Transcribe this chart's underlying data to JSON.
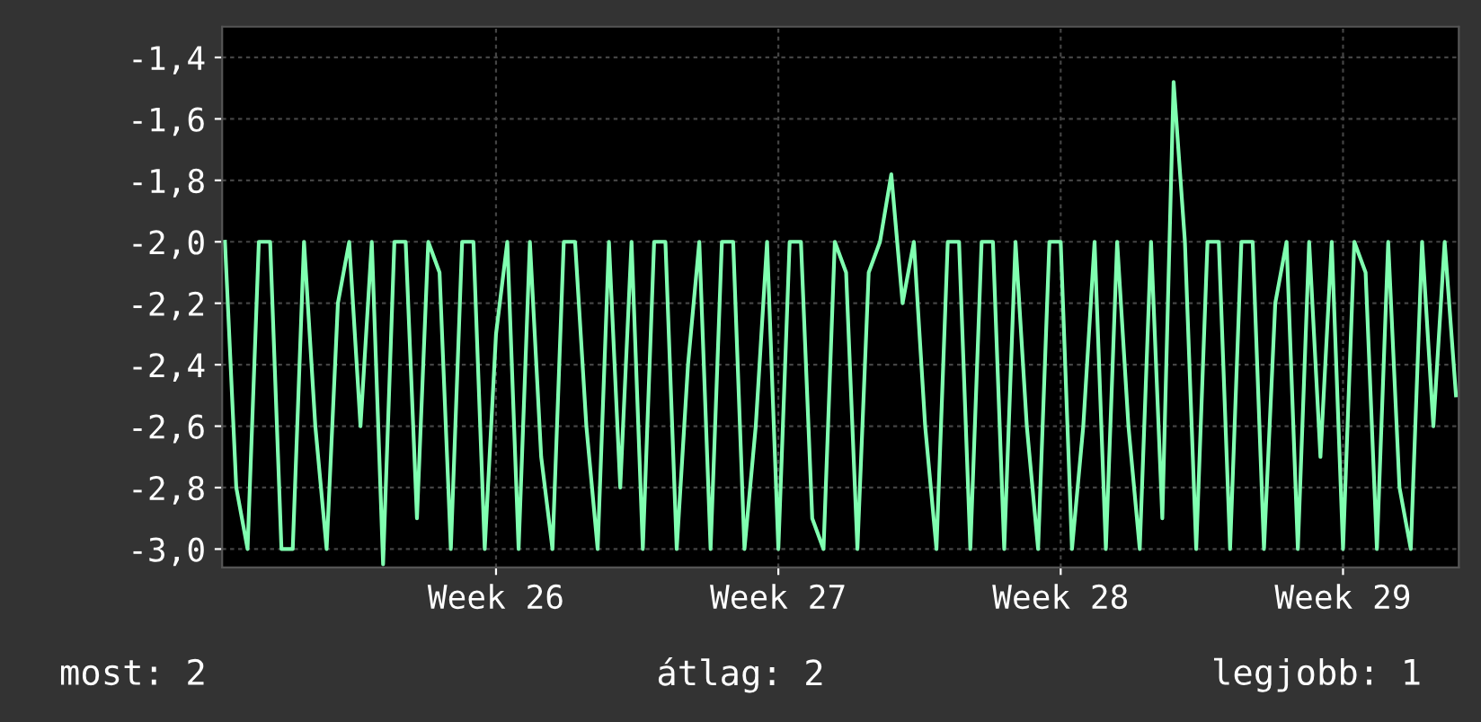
{
  "chart_data": {
    "type": "line",
    "color": "#80ffb0",
    "categories": [
      null,
      null,
      null,
      null,
      null,
      null,
      null,
      null,
      null,
      null,
      null,
      null,
      null,
      null,
      null,
      null,
      null,
      null,
      null,
      null,
      null,
      null,
      null,
      null,
      "Week 26",
      null,
      null,
      null,
      null,
      null,
      null,
      null,
      null,
      null,
      null,
      null,
      null,
      null,
      null,
      null,
      null,
      null,
      null,
      null,
      null,
      null,
      null,
      null,
      null,
      "Week 27",
      null,
      null,
      null,
      null,
      null,
      null,
      null,
      null,
      null,
      null,
      null,
      null,
      null,
      null,
      null,
      null,
      null,
      null,
      null,
      null,
      null,
      null,
      null,
      null,
      "Week 28",
      null,
      null,
      null,
      null,
      null,
      null,
      null,
      null,
      null,
      null,
      null,
      null,
      null,
      null,
      null,
      null,
      null,
      null,
      null,
      null,
      null,
      null,
      null,
      null,
      "Week 29",
      null,
      null,
      null,
      null,
      null,
      null,
      null,
      null,
      null,
      null
    ],
    "values": [
      -2.0,
      -2.8,
      -3.0,
      -2.0,
      -2.0,
      -3.0,
      -3.0,
      -2.0,
      -2.6,
      -3.0,
      -2.2,
      -2.0,
      -2.6,
      -2.0,
      -3.05,
      -2.0,
      -2.0,
      -2.9,
      -2.0,
      -2.1,
      -3.0,
      -2.0,
      -2.0,
      -3.0,
      -2.3,
      -2.0,
      -3.0,
      -2.0,
      -2.7,
      -3.0,
      -2.0,
      -2.0,
      -2.6,
      -3.0,
      -2.0,
      -2.8,
      -2.0,
      -3.0,
      -2.0,
      -2.0,
      -3.0,
      -2.4,
      -2.0,
      -3.0,
      -2.0,
      -2.0,
      -3.0,
      -2.6,
      -2.0,
      -3.0,
      -2.0,
      -2.0,
      -2.9,
      -3.0,
      -2.0,
      -2.1,
      -3.0,
      -2.1,
      -2.0,
      -1.78,
      -2.2,
      -2.0,
      -2.6,
      -3.0,
      -2.0,
      -2.0,
      -3.0,
      -2.0,
      -2.0,
      -3.0,
      -2.0,
      -2.6,
      -3.0,
      -2.0,
      -2.0,
      -3.0,
      -2.6,
      -2.0,
      -3.0,
      -2.0,
      -2.6,
      -3.0,
      -2.0,
      -2.9,
      -1.48,
      -2.0,
      -3.0,
      -2.0,
      -2.0,
      -3.0,
      -2.0,
      -2.0,
      -3.0,
      -2.2,
      -2.0,
      -3.0,
      -2.0,
      -2.7,
      -2.0,
      -3.0,
      -2.0,
      -2.1,
      -3.0,
      -2.0,
      -2.8,
      -3.0,
      -2.0,
      -2.6,
      -2.0,
      -2.5
    ],
    "ylim": [
      -3.06,
      -1.3
    ],
    "yticks": [
      {
        "value": -3.0,
        "label": "-3,0"
      },
      {
        "value": -2.8,
        "label": "-2,8"
      },
      {
        "value": -2.6,
        "label": "-2,6"
      },
      {
        "value": -2.4,
        "label": "-2,4"
      },
      {
        "value": -2.2,
        "label": "-2,2"
      },
      {
        "value": -2.0,
        "label": "-2,0"
      },
      {
        "value": -1.8,
        "label": "-1,8"
      },
      {
        "value": -1.6,
        "label": "-1,6"
      },
      {
        "value": -1.4,
        "label": "-1,4"
      }
    ],
    "grid": true,
    "legend": false,
    "marker": "none",
    "line_style": "solid",
    "annotations": [
      "most: 2",
      "átlag: 2",
      "legjobb: 1"
    ]
  }
}
